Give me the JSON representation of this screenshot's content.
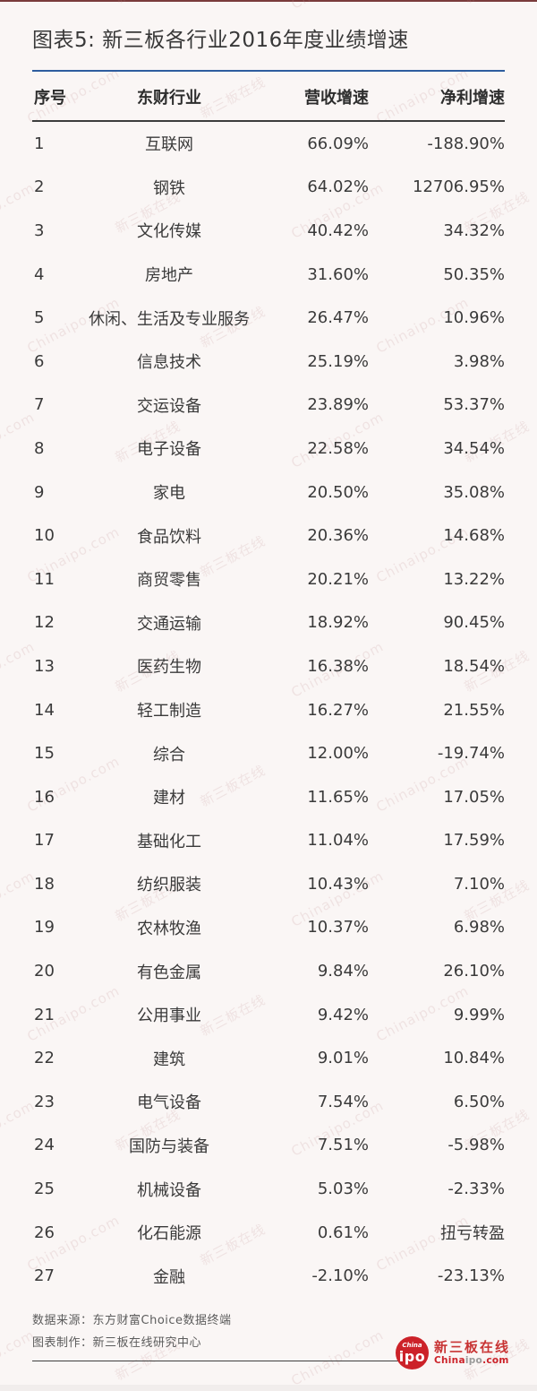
{
  "page": {
    "title": "图表5: 新三板各行业2016年度业绩增速"
  },
  "chart_data": {
    "type": "table",
    "title": "图表5: 新三板各行业2016年度业绩增速",
    "columns": [
      "序号",
      "东财行业",
      "营收增速",
      "净利增速"
    ],
    "rows": [
      [
        "1",
        "互联网",
        "66.09%",
        "-188.90%"
      ],
      [
        "2",
        "钢铁",
        "64.02%",
        "12706.95%"
      ],
      [
        "3",
        "文化传媒",
        "40.42%",
        "34.32%"
      ],
      [
        "4",
        "房地产",
        "31.60%",
        "50.35%"
      ],
      [
        "5",
        "休闲、生活及专业服务",
        "26.47%",
        "10.96%"
      ],
      [
        "6",
        "信息技术",
        "25.19%",
        "3.98%"
      ],
      [
        "7",
        "交运设备",
        "23.89%",
        "53.37%"
      ],
      [
        "8",
        "电子设备",
        "22.58%",
        "34.54%"
      ],
      [
        "9",
        "家电",
        "20.50%",
        "35.08%"
      ],
      [
        "10",
        "食品饮料",
        "20.36%",
        "14.68%"
      ],
      [
        "11",
        "商贸零售",
        "20.21%",
        "13.22%"
      ],
      [
        "12",
        "交通运输",
        "18.92%",
        "90.45%"
      ],
      [
        "13",
        "医药生物",
        "16.38%",
        "18.54%"
      ],
      [
        "14",
        "轻工制造",
        "16.27%",
        "21.55%"
      ],
      [
        "15",
        "综合",
        "12.00%",
        "-19.74%"
      ],
      [
        "16",
        "建材",
        "11.65%",
        "17.05%"
      ],
      [
        "17",
        "基础化工",
        "11.04%",
        "17.59%"
      ],
      [
        "18",
        "纺织服装",
        "10.43%",
        "7.10%"
      ],
      [
        "19",
        "农林牧渔",
        "10.37%",
        "6.98%"
      ],
      [
        "20",
        "有色金属",
        "9.84%",
        "26.10%"
      ],
      [
        "21",
        "公用事业",
        "9.42%",
        "9.99%"
      ],
      [
        "22",
        "建筑",
        "9.01%",
        "10.84%"
      ],
      [
        "23",
        "电气设备",
        "7.54%",
        "6.50%"
      ],
      [
        "24",
        "国防与装备",
        "7.51%",
        "-5.98%"
      ],
      [
        "25",
        "机械设备",
        "5.03%",
        "-2.33%"
      ],
      [
        "26",
        "化石能源",
        "0.61%",
        "扭亏转盈"
      ],
      [
        "27",
        "金融",
        "-2.10%",
        "-23.13%"
      ]
    ]
  },
  "footer": {
    "source": "数据来源：东方财富Choice数据终端",
    "maker": "图表制作：新三板在线研究中心"
  },
  "logo": {
    "badge_top": "China",
    "badge_main": "ipo",
    "name": "新三板在线",
    "domain_prefix": "China",
    "domain_mid": "ipo",
    "domain_suffix": ".com"
  },
  "watermark": {
    "texts": [
      "Chinaipo.com",
      "新三板在线"
    ]
  },
  "colors": {
    "accent_blue": "#2e5d9f",
    "logo_red": "#cc2229",
    "background": "#faf6f5"
  }
}
